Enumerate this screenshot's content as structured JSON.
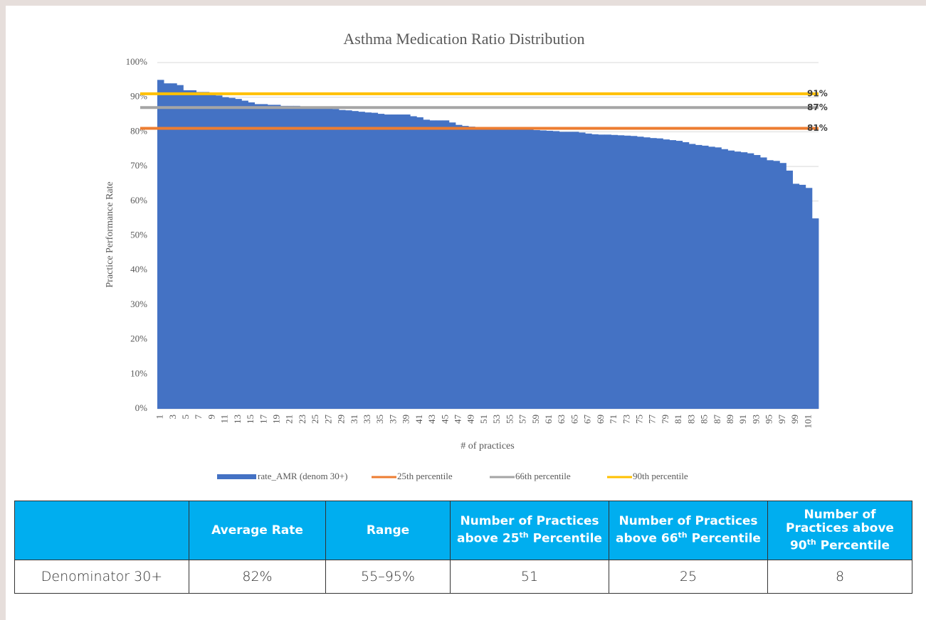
{
  "chart_data": {
    "type": "bar",
    "title": "Asthma Medication Ratio Distribution",
    "x_label": "# of practices",
    "y_label": "Practice Performance Rate",
    "categories": [
      1,
      null,
      3,
      null,
      5,
      null,
      7,
      null,
      9,
      null,
      11,
      null,
      13,
      null,
      15,
      null,
      17,
      null,
      19,
      null,
      21,
      null,
      23,
      null,
      25,
      null,
      27,
      null,
      29,
      null,
      31,
      null,
      33,
      null,
      35,
      null,
      37,
      null,
      39,
      null,
      41,
      null,
      43,
      null,
      45,
      null,
      47,
      null,
      49,
      null,
      51,
      null,
      53,
      null,
      55,
      null,
      57,
      null,
      59,
      null,
      61,
      null,
      63,
      null,
      65,
      null,
      67,
      null,
      69,
      null,
      71,
      null,
      73,
      null,
      75,
      null,
      77,
      null,
      79,
      null,
      81,
      null,
      83,
      null,
      85,
      null,
      87,
      null,
      89,
      null,
      91,
      null,
      93,
      null,
      95,
      null,
      97,
      null,
      99,
      null,
      101,
      null
    ],
    "series": [
      {
        "name": "rate_AMR (denom 30+)",
        "color": "#4472c4",
        "values": [
          95,
          94,
          94,
          93.5,
          92,
          92,
          91.5,
          91.5,
          91,
          90.5,
          90,
          89.8,
          89.5,
          89,
          88.5,
          88,
          88,
          87.8,
          87.8,
          87.5,
          87.5,
          87.5,
          87.3,
          87.2,
          87,
          87,
          86.8,
          86.6,
          86.3,
          86.2,
          86,
          85.8,
          85.6,
          85.5,
          85.2,
          85,
          85,
          85,
          85,
          84.5,
          84.2,
          83.5,
          83.3,
          83.3,
          83.3,
          82.7,
          82,
          81.7,
          81.5,
          81.3,
          81.2,
          81.1,
          81,
          81,
          80.9,
          80.8,
          80.6,
          80.6,
          80.5,
          80.4,
          80.3,
          80.2,
          80,
          80,
          80,
          79.8,
          79.5,
          79.3,
          79.2,
          79.2,
          79.1,
          79,
          78.9,
          78.8,
          78.6,
          78.4,
          78.2,
          78.1,
          77.8,
          77.6,
          77.4,
          77,
          76.5,
          76.2,
          76,
          75.7,
          75.5,
          75,
          74.6,
          74.3,
          74.1,
          73.8,
          73.3,
          72.6,
          71.8,
          71.6,
          71,
          68.8,
          65,
          64.7,
          63.8,
          55
        ]
      }
    ],
    "reference_lines": [
      {
        "name": "25th percentile",
        "color": "#ed7d31",
        "value": 81,
        "label": "81%"
      },
      {
        "name": "66th percentile",
        "color": "#a5a5a5",
        "value": 87,
        "label": "87%"
      },
      {
        "name": "90th percentile",
        "color": "#ffc000",
        "value": 91,
        "label": "91%"
      }
    ],
    "ylim": [
      0,
      100
    ],
    "yticks": [
      {
        "value": 0,
        "label": "0%"
      },
      {
        "value": 10,
        "label": "10%"
      },
      {
        "value": 20,
        "label": "20%"
      },
      {
        "value": 30,
        "label": "30%"
      },
      {
        "value": 40,
        "label": "40%"
      },
      {
        "value": 50,
        "label": "50%"
      },
      {
        "value": 60,
        "label": "60%"
      },
      {
        "value": 70,
        "label": "70%"
      },
      {
        "value": 80,
        "label": "80%"
      },
      {
        "value": 90,
        "label": "90%"
      },
      {
        "value": 100,
        "label": "100%"
      }
    ],
    "grid": true,
    "legend": "bottom"
  },
  "table": {
    "header": [
      {
        "text": ""
      },
      {
        "text": "Average Rate"
      },
      {
        "text": "Range"
      },
      {
        "text": "Number of Practices above 25",
        "sup": "th",
        "tail": "Percentile"
      },
      {
        "text": "Number of Practices above 66",
        "sup": "th",
        "tail": "Percentile"
      },
      {
        "text": "Number of Practices above 90",
        "sup": "th",
        "tail": "Percentile"
      }
    ],
    "rows": [
      [
        "Denominator 30+",
        "82%",
        "55–95%",
        "51",
        "25",
        "8"
      ]
    ]
  }
}
